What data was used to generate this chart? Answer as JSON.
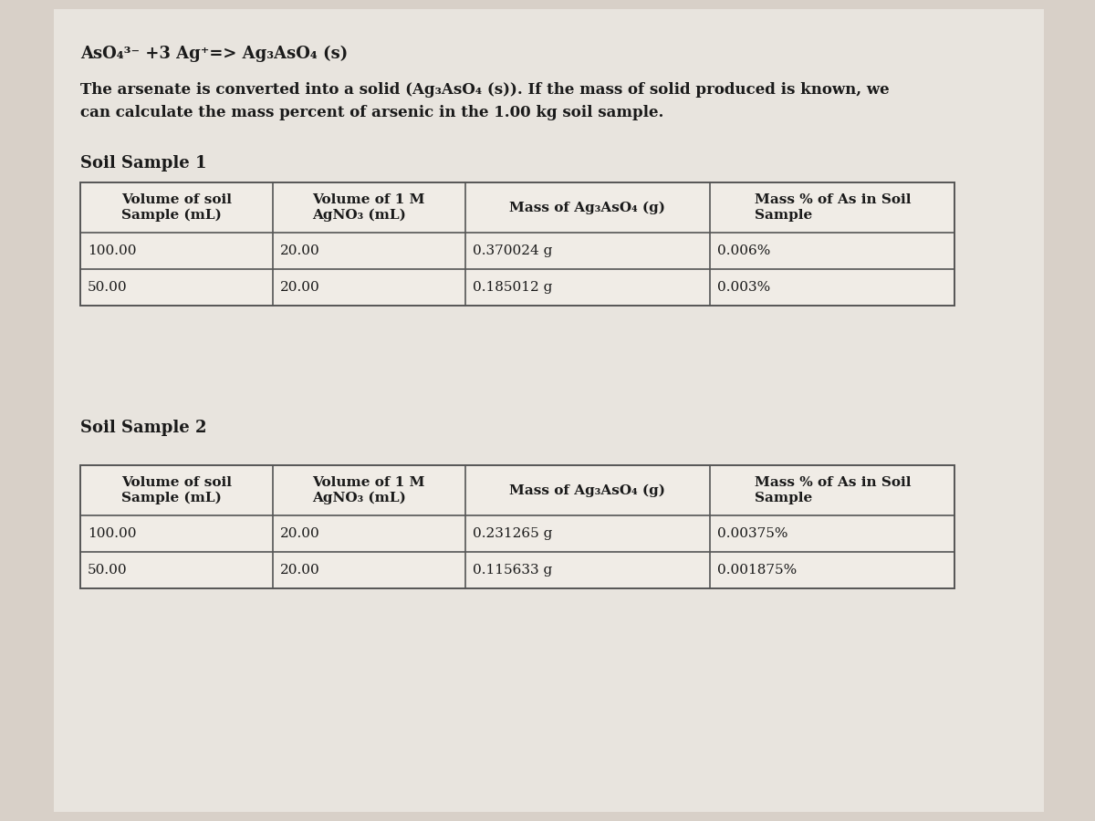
{
  "background_color": "#d8d0c8",
  "content_bg": "#e8e4de",
  "equation_line": "AsO₄³⁻ +3 Ag⁺=> Ag₃AsO₄ (s)",
  "description_line1": "The arsenate is converted into a solid (Ag₃AsO₄ (s)). If the mass of solid produced is known, we",
  "description_line2": "can calculate the mass percent of arsenic in the 1.00 kg soil sample.",
  "sample1_title": "Soil Sample 1",
  "sample2_title": "Soil Sample 2",
  "table1_headers": [
    "Volume of soil\nSample (mL)",
    "Volume of 1 M\nAgNO₃ (mL)",
    "Mass of Ag₃AsO₄ (g)",
    "Mass % of As in Soil\nSample"
  ],
  "table1_rows": [
    [
      "100.00",
      "20.00",
      "0.370024 g",
      "0.006%"
    ],
    [
      "50.00",
      "20.00",
      "0.185012 g",
      "0.003%"
    ]
  ],
  "table2_headers": [
    "Volume of soil\nSample (mL)",
    "Volume of 1 M\nAgNO₃ (mL)",
    "Mass of Ag₃AsO₄ (g)",
    "Mass % of As in Soil\nSample"
  ],
  "table2_rows": [
    [
      "100.00",
      "20.00",
      "0.231265 g",
      "0.00375%"
    ],
    [
      "50.00",
      "20.00",
      "0.115633 g",
      "0.001875%"
    ]
  ],
  "font_size_eq": 13,
  "font_size_desc": 12,
  "font_size_title": 13,
  "font_size_table": 11,
  "text_color": "#1a1a1a",
  "table_border_color": "#555555",
  "table_bg": "#f0ece6",
  "header_bg": "#e8e4de"
}
